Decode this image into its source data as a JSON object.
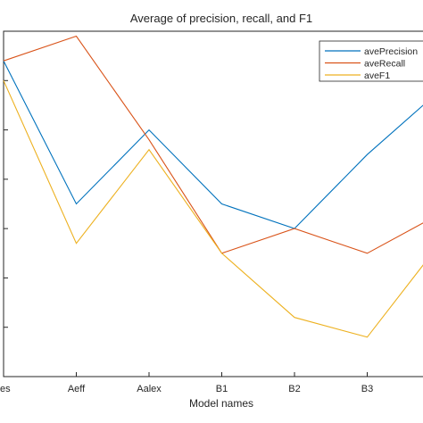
{
  "chart_data": {
    "type": "line",
    "title": "Average of precision, recall, and F1",
    "xlabel": "Model names",
    "ylabel": "",
    "categories": [
      "res",
      "Aeff",
      "Aalex",
      "B1",
      "B2",
      "B3",
      ""
    ],
    "ylim": [
      0,
      7
    ],
    "grid": false,
    "legend_position": "top-right",
    "series": [
      {
        "name": "avePrecision",
        "color": "#0072BD",
        "values": [
          6.4,
          3.5,
          5.0,
          3.5,
          3.0,
          4.5,
          5.8
        ]
      },
      {
        "name": "aveRecall",
        "color": "#D95319",
        "values": [
          6.4,
          6.9,
          4.8,
          2.5,
          3.0,
          2.5,
          3.3
        ]
      },
      {
        "name": "aveF1",
        "color": "#EDB120",
        "values": [
          6.0,
          2.7,
          4.6,
          2.5,
          1.2,
          0.8,
          2.7
        ]
      }
    ]
  }
}
